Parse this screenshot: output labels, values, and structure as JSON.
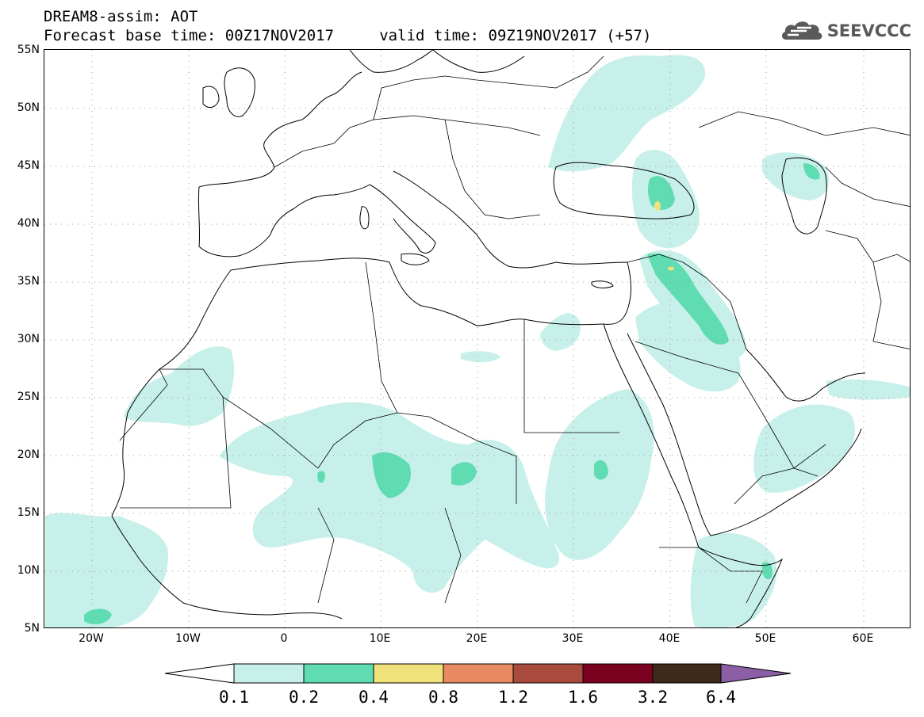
{
  "header": {
    "title_line1": "DREAM8-assim: AOT",
    "title_line2": "Forecast base time: 00Z17NOV2017     valid time: 09Z19NOV2017 (+57)",
    "logo_text": "SEEVCCC"
  },
  "map": {
    "lat_labels": [
      "55N",
      "50N",
      "45N",
      "40N",
      "35N",
      "30N",
      "25N",
      "20N",
      "15N",
      "10N",
      "5N"
    ],
    "lon_labels": [
      "20W",
      "10W",
      "0",
      "10E",
      "20E",
      "30E",
      "40E",
      "50E",
      "60E"
    ],
    "colors": {
      "border": "#000000",
      "grid": "#9a9a9a",
      "level_0_1": "#c8f0ea",
      "level_0_2": "#5fdcb2",
      "level_0_4": "#f0e27a"
    }
  },
  "colorbar": {
    "labels": [
      "0.1",
      "0.2",
      "0.4",
      "0.8",
      "1.2",
      "1.6",
      "3.2",
      "6.4"
    ],
    "colors": [
      "#ffffff",
      "#c8f0ea",
      "#5fdcb2",
      "#f0e27a",
      "#e78a64",
      "#a84a3c",
      "#7a0020",
      "#3d2a18",
      "#8a5fa6"
    ]
  }
}
